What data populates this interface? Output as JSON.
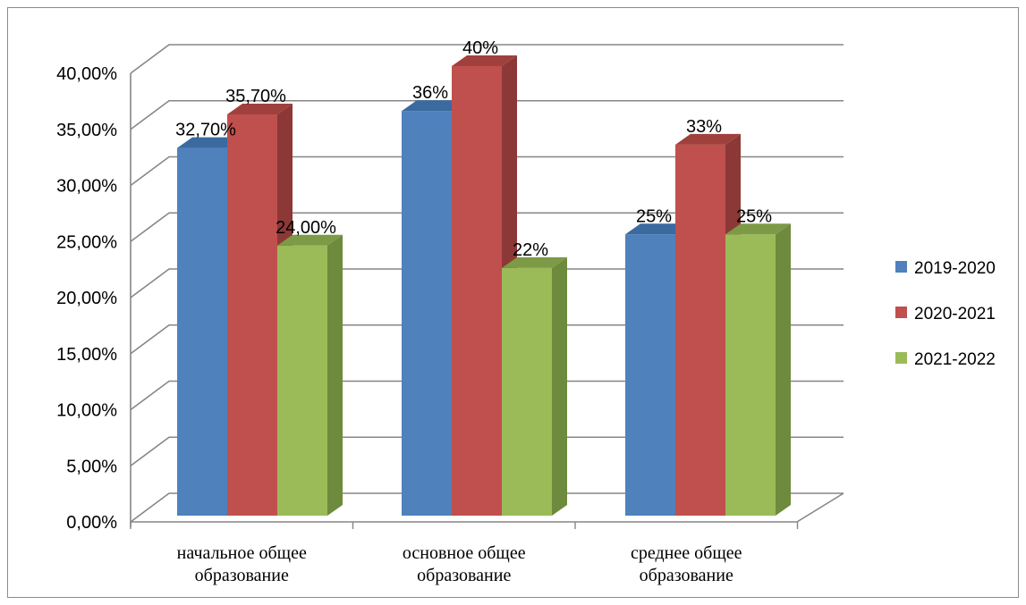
{
  "chart_data": {
    "type": "bar",
    "title": "",
    "xlabel": "",
    "ylabel": "",
    "ylim": [
      0,
      40
    ],
    "yticks": [
      "0,00%",
      "5,00%",
      "10,00%",
      "15,00%",
      "20,00%",
      "25,00%",
      "30,00%",
      "35,00%",
      "40,00%"
    ],
    "categories": [
      [
        "начальное общее",
        "образование"
      ],
      [
        "основное общее",
        "образование"
      ],
      [
        "среднее общее",
        "образование"
      ]
    ],
    "series": [
      {
        "name": "2019-2020",
        "values": [
          32.7,
          36,
          25
        ],
        "labels": [
          "32,70%",
          "36%",
          "25%"
        ],
        "color": "#4f81bd",
        "side": "#385d8a",
        "top": "#3a6aa0"
      },
      {
        "name": "2020-2021",
        "values": [
          35.7,
          40,
          33
        ],
        "labels": [
          "35,70%",
          "40%",
          "33%"
        ],
        "color": "#c0504d",
        "side": "#8c3836",
        "top": "#a0403d"
      },
      {
        "name": "2021-2022",
        "values": [
          24,
          22,
          25
        ],
        "labels": [
          "24,00%",
          "22%",
          "25%"
        ],
        "color": "#9bbb59",
        "side": "#6e8a3c",
        "top": "#7d9a46"
      }
    ],
    "grid": true,
    "legend": "right"
  }
}
